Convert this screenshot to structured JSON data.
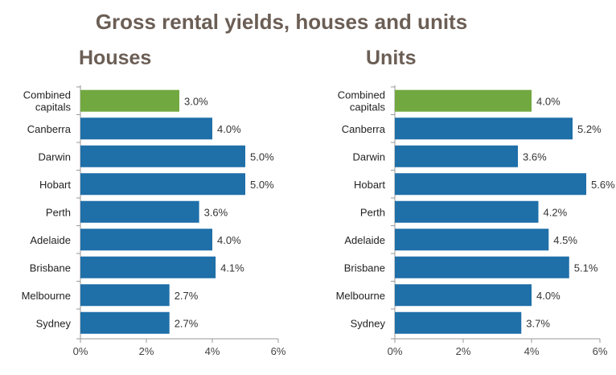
{
  "title": "Gross rental yields, houses and units",
  "chart_data": [
    {
      "type": "bar",
      "orientation": "horizontal",
      "title": "Houses",
      "categories": [
        "Combined capitals",
        "Canberra",
        "Darwin",
        "Hobart",
        "Perth",
        "Adelaide",
        "Brisbane",
        "Melbourne",
        "Sydney"
      ],
      "values": [
        3.0,
        4.0,
        5.0,
        5.0,
        3.6,
        4.0,
        4.1,
        2.7,
        2.7
      ],
      "value_labels": [
        "3.0%",
        "4.0%",
        "5.0%",
        "5.0%",
        "3.6%",
        "4.0%",
        "4.1%",
        "2.7%",
        "2.7%"
      ],
      "highlight_index": 0,
      "xlim": [
        0,
        6
      ],
      "xticks": [
        "0%",
        "2%",
        "4%",
        "6%"
      ],
      "grid": false
    },
    {
      "type": "bar",
      "orientation": "horizontal",
      "title": "Units",
      "categories": [
        "Combined capitals",
        "Canberra",
        "Darwin",
        "Hobart",
        "Perth",
        "Adelaide",
        "Brisbane",
        "Melbourne",
        "Sydney"
      ],
      "values": [
        4.0,
        5.2,
        3.6,
        5.6,
        4.2,
        4.5,
        5.1,
        4.0,
        3.7
      ],
      "value_labels": [
        "4.0%",
        "5.2%",
        "3.6%",
        "5.6%",
        "4.2%",
        "4.5%",
        "5.1%",
        "4.0%",
        "3.7%"
      ],
      "highlight_index": 0,
      "xlim": [
        0,
        6
      ],
      "xticks": [
        "0%",
        "2%",
        "4%",
        "6%"
      ],
      "grid": false
    }
  ],
  "colors": {
    "bar": "#1f6fa8",
    "highlight": "#72a840",
    "title": "#6b5e55",
    "axis": "#9a9a9a"
  }
}
